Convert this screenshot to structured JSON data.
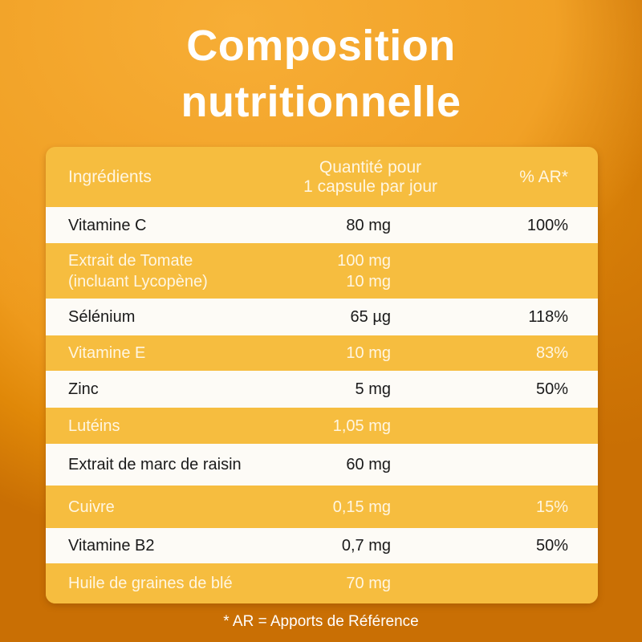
{
  "title": {
    "line1": "Composition",
    "line2": "nutritionnelle"
  },
  "table": {
    "headers": {
      "ingredient": "Ingrédients",
      "quantity_line1": "Quantité pour",
      "quantity_line2": "1 capsule par jour",
      "ar": "% AR*"
    },
    "rows": [
      {
        "name": "Vitamine C",
        "qty": "80 mg",
        "ar": "100%"
      },
      {
        "name": "Extrait de Tomate",
        "name2": "(incluant Lycopène)",
        "qty": "100 mg",
        "qty2": "10 mg",
        "ar": ""
      },
      {
        "name": "Sélénium",
        "qty": "65 µg",
        "ar": "118%"
      },
      {
        "name": "Vitamine E",
        "qty": "10 mg",
        "ar": "83%"
      },
      {
        "name": "Zinc",
        "qty": "5 mg",
        "ar": "50%"
      },
      {
        "name": "Lutéins",
        "qty": "1,05 mg",
        "ar": ""
      },
      {
        "name": "Extrait de marc de raisin",
        "qty": "60 mg",
        "ar": ""
      },
      {
        "name": "Cuivre",
        "qty": "0,15 mg",
        "ar": "15%"
      },
      {
        "name": "Vitamine B2",
        "qty": "0,7 mg",
        "ar": "50%"
      },
      {
        "name": "Huile de graines de blé",
        "qty": "70 mg",
        "ar": ""
      }
    ]
  },
  "footnote": "* AR = Apports de Référence",
  "colors": {
    "background": "#ee9a1c",
    "row_yellow": "#f6bd3f",
    "row_white": "#fdfbf6"
  }
}
